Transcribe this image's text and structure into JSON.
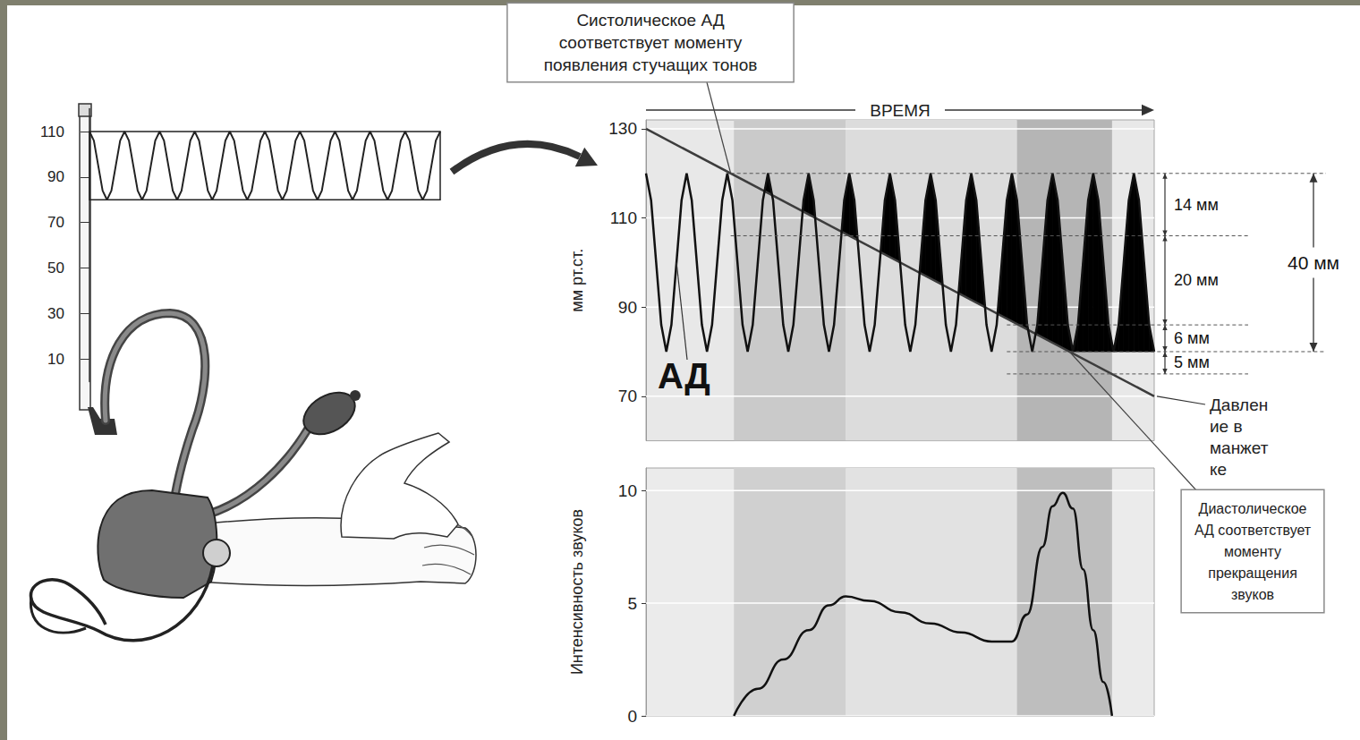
{
  "chart_data": [
    {
      "type": "line",
      "x": [
        0,
        1,
        2,
        3,
        4,
        5,
        6,
        7,
        8,
        9,
        10,
        11,
        12,
        13,
        14,
        15,
        16,
        17,
        18,
        19,
        20,
        21,
        22,
        23,
        24,
        25,
        26,
        27,
        28,
        29,
        30,
        31,
        32,
        33,
        34,
        35,
        36,
        37,
        38,
        39,
        40,
        41,
        42,
        43,
        44,
        45,
        46,
        47,
        48,
        49,
        50,
        51,
        52,
        53,
        54,
        55,
        56,
        57,
        58,
        59,
        60,
        61,
        62,
        63,
        64,
        65,
        66,
        67,
        68,
        69,
        70,
        71,
        72,
        73,
        74,
        75,
        76,
        77,
        78,
        79,
        80
      ],
      "values": [
        110,
        106,
        95,
        84,
        80,
        84,
        95,
        106,
        110,
        106,
        95,
        84,
        80,
        84,
        95,
        106,
        110,
        106,
        95,
        84,
        80,
        84,
        95,
        106,
        110,
        106,
        95,
        84,
        80,
        84,
        95,
        106,
        110,
        106,
        95,
        84,
        80,
        84,
        95,
        106,
        110,
        106,
        95,
        84,
        80,
        84,
        95,
        106,
        110,
        106,
        95,
        84,
        80,
        84,
        95,
        106,
        110,
        106,
        95,
        84,
        80,
        84,
        95,
        106,
        110,
        106,
        95,
        84,
        80,
        84,
        95,
        106,
        110,
        106,
        95,
        84,
        80,
        84,
        95,
        106,
        110
      ],
      "color": "#222222",
      "xlim": [
        0,
        80
      ],
      "ylim": [
        0,
        120
      ],
      "yticks": [
        10,
        30,
        50,
        70,
        90,
        110
      ],
      "tick_labels": "y"
    },
    {
      "type": "line",
      "xlabel": "ВРЕМЯ",
      "ylabel": "мм рт.ст.",
      "xlim": [
        0,
        100
      ],
      "ylim": [
        60,
        132
      ],
      "yticks": [
        70,
        90,
        110,
        130
      ],
      "grid": true,
      "tick_labels": "y",
      "series": [
        {
          "name": "АД",
          "color": "#111111",
          "x": [
            0,
            1,
            2,
            3,
            4,
            5,
            6,
            7,
            8,
            9,
            10,
            11,
            12,
            13,
            14,
            15,
            16,
            17,
            18,
            19,
            20,
            21,
            22,
            23,
            24,
            25,
            26,
            27,
            28,
            29,
            30,
            31,
            32,
            33,
            34,
            35,
            36,
            37,
            38,
            39,
            40,
            41,
            42,
            43,
            44,
            45,
            46,
            47,
            48,
            49,
            50,
            51,
            52,
            53,
            54,
            55,
            56,
            57,
            58,
            59,
            60,
            61,
            62,
            63,
            64,
            65,
            66,
            67,
            68,
            69,
            70,
            71,
            72,
            73,
            74,
            75,
            76,
            77,
            78,
            79,
            80,
            81,
            82,
            83,
            84,
            85,
            86,
            87,
            88,
            89,
            90,
            91,
            92,
            93,
            94,
            95,
            96,
            97,
            98,
            99,
            100
          ],
          "values": [
            120,
            114,
            100,
            86,
            80,
            86,
            100,
            114,
            120,
            114,
            100,
            86,
            80,
            86,
            100,
            114,
            120,
            114,
            100,
            86,
            80,
            86,
            100,
            114,
            120,
            114,
            100,
            86,
            80,
            86,
            100,
            114,
            120,
            114,
            100,
            86,
            80,
            86,
            100,
            114,
            120,
            114,
            100,
            86,
            80,
            86,
            100,
            114,
            120,
            114,
            100,
            86,
            80,
            86,
            100,
            114,
            120,
            114,
            100,
            86,
            80,
            86,
            100,
            114,
            120,
            114,
            100,
            86,
            80,
            86,
            100,
            114,
            120,
            114,
            100,
            86,
            80,
            86,
            100,
            114,
            120,
            114,
            100,
            86,
            80,
            86,
            100,
            114,
            120,
            114,
            100,
            86,
            80,
            86,
            100,
            114,
            120,
            114,
            100,
            86,
            80
          ]
        },
        {
          "name": "Давление в манжетке",
          "color": "#3c3c3c",
          "x": [
            0,
            100
          ],
          "values": [
            130,
            70
          ]
        }
      ],
      "bands": [
        {
          "x": [
            17.3,
            39.3
          ],
          "color": "#cacaca"
        },
        {
          "x": [
            39.3,
            73
          ],
          "color": "#dcdcdc"
        },
        {
          "x": [
            73,
            91.7
          ],
          "color": "#b5b5b5"
        }
      ],
      "annotations": [
        {
          "text": "Систолическое АД\nсоответствует моменту\nпоявления стучащих тонов"
        },
        {
          "text": "Диастолическое\nАД соответствует\nмоменту\nпрекращения\nзвуков"
        }
      ],
      "dimensions": [
        {
          "label": "14 мм",
          "from": 120,
          "to": 106
        },
        {
          "label": "20 мм",
          "from": 106,
          "to": 86
        },
        {
          "label": "6 мм",
          "from": 86,
          "to": 80
        },
        {
          "label": "5 мм",
          "from": 80,
          "to": 75
        },
        {
          "label": "40 мм",
          "from": 120,
          "to": 80
        }
      ]
    },
    {
      "type": "line",
      "ylabel": "Интенсивность звуков",
      "xlim": [
        0,
        100
      ],
      "ylim": [
        0,
        11
      ],
      "yticks": [
        0,
        5,
        10
      ],
      "grid": true,
      "tick_labels": "y",
      "x": [
        17.3,
        22,
        27,
        32,
        36,
        39.3,
        44,
        50,
        56,
        62,
        68,
        72,
        75,
        78,
        80,
        82,
        84,
        86,
        88,
        90,
        91.7
      ],
      "values": [
        0,
        1.2,
        2.5,
        3.8,
        4.9,
        5.3,
        5.1,
        4.6,
        4.1,
        3.7,
        3.3,
        3.3,
        4.5,
        7.5,
        9.3,
        9.9,
        9.2,
        6.5,
        3.8,
        1.5,
        0
      ],
      "color": "#111111",
      "bands": [
        {
          "x": [
            17.3,
            39.3
          ],
          "color": "#d0d0d0"
        },
        {
          "x": [
            39.3,
            73
          ],
          "color": "#e2e2e2"
        },
        {
          "x": [
            73,
            91.7
          ],
          "color": "#bebebe"
        }
      ]
    }
  ]
}
